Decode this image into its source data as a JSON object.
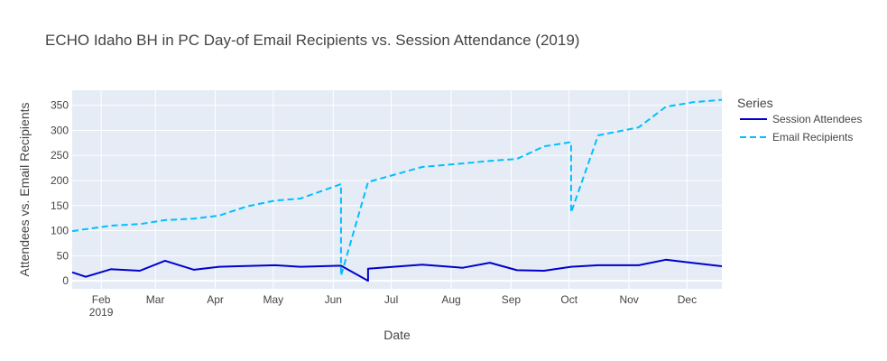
{
  "chart_data": {
    "type": "line",
    "title": "ECHO Idaho BH in PC Day-of Email Recipients vs. Session Attendance (2019)",
    "xlabel": "Date",
    "ylabel": "Attendees vs. Email Recipients",
    "x_range": [
      "2019-01-17",
      "2019-12-19"
    ],
    "ylim": [
      -16,
      380
    ],
    "y_ticks": [
      0,
      50,
      100,
      150,
      200,
      250,
      300,
      350
    ],
    "x_ticks": [
      {
        "date": "2019-02-01",
        "label": "Feb",
        "sublabel": "2019"
      },
      {
        "date": "2019-03-01",
        "label": "Mar",
        "sublabel": ""
      },
      {
        "date": "2019-04-01",
        "label": "Apr",
        "sublabel": ""
      },
      {
        "date": "2019-05-01",
        "label": "May",
        "sublabel": ""
      },
      {
        "date": "2019-06-01",
        "label": "Jun",
        "sublabel": ""
      },
      {
        "date": "2019-07-01",
        "label": "Jul",
        "sublabel": ""
      },
      {
        "date": "2019-08-01",
        "label": "Aug",
        "sublabel": ""
      },
      {
        "date": "2019-09-01",
        "label": "Sep",
        "sublabel": ""
      },
      {
        "date": "2019-10-01",
        "label": "Oct",
        "sublabel": ""
      },
      {
        "date": "2019-11-01",
        "label": "Nov",
        "sublabel": ""
      },
      {
        "date": "2019-12-01",
        "label": "Dec",
        "sublabel": ""
      }
    ],
    "grid": true,
    "legend_title": "Series",
    "legend_position": "right",
    "series": [
      {
        "name": "Session Attendees",
        "color": "#0000cc",
        "dash": "solid",
        "points": [
          [
            "2019-01-17",
            17
          ],
          [
            "2019-01-24",
            8
          ],
          [
            "2019-02-06",
            23
          ],
          [
            "2019-02-21",
            20
          ],
          [
            "2019-03-06",
            40
          ],
          [
            "2019-03-21",
            22
          ],
          [
            "2019-04-03",
            28
          ],
          [
            "2019-05-02",
            31
          ],
          [
            "2019-05-15",
            28
          ],
          [
            "2019-06-05",
            30
          ],
          [
            "2019-06-19",
            0
          ],
          [
            "2019-06-19",
            24
          ],
          [
            "2019-07-17",
            32
          ],
          [
            "2019-08-07",
            26
          ],
          [
            "2019-08-21",
            36
          ],
          [
            "2019-09-04",
            21
          ],
          [
            "2019-09-18",
            20
          ],
          [
            "2019-10-02",
            28
          ],
          [
            "2019-10-16",
            31
          ],
          [
            "2019-11-06",
            31
          ],
          [
            "2019-11-20",
            42
          ],
          [
            "2019-12-19",
            29
          ]
        ]
      },
      {
        "name": "Email Recipients",
        "color": "#00bfff",
        "dash": "dashed",
        "points": [
          [
            "2019-01-17",
            99
          ],
          [
            "2019-02-06",
            110
          ],
          [
            "2019-02-21",
            113
          ],
          [
            "2019-03-06",
            121
          ],
          [
            "2019-03-21",
            124
          ],
          [
            "2019-04-03",
            130
          ],
          [
            "2019-04-17",
            148
          ],
          [
            "2019-05-02",
            160
          ],
          [
            "2019-05-15",
            164
          ],
          [
            "2019-06-03",
            190
          ],
          [
            "2019-06-05",
            193
          ],
          [
            "2019-06-05",
            10
          ],
          [
            "2019-06-19",
            197
          ],
          [
            "2019-07-17",
            227
          ],
          [
            "2019-08-07",
            234
          ],
          [
            "2019-08-21",
            239
          ],
          [
            "2019-09-04",
            243
          ],
          [
            "2019-09-18",
            268
          ],
          [
            "2019-10-01",
            276
          ],
          [
            "2019-10-02",
            276
          ],
          [
            "2019-10-02",
            136
          ],
          [
            "2019-10-16",
            290
          ],
          [
            "2019-11-06",
            306
          ],
          [
            "2019-11-20",
            347
          ],
          [
            "2019-12-04",
            356
          ],
          [
            "2019-12-19",
            361
          ]
        ]
      }
    ]
  }
}
